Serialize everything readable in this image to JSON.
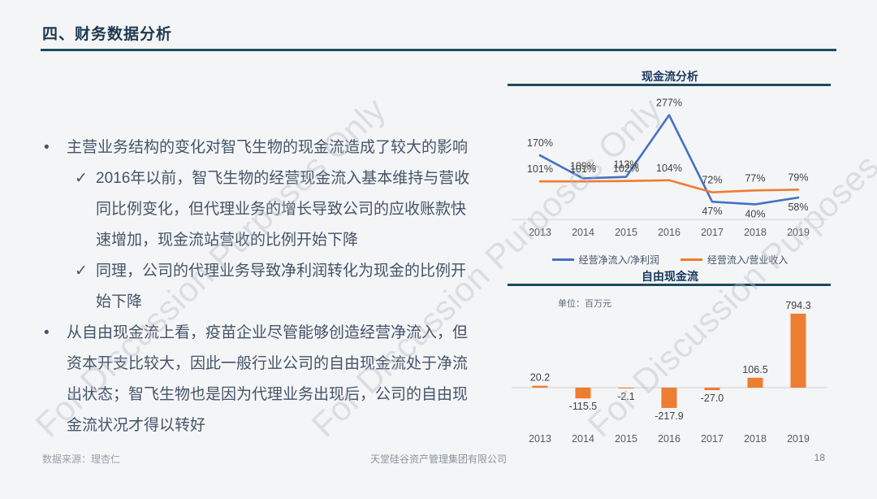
{
  "page": {
    "title": "四、财务数据分析",
    "page_number": "18",
    "footer_source": "数据来源：理杏仁",
    "footer_company": "天堂硅谷资产管理集团有限公司",
    "watermark": "For Discussion Purposes Only"
  },
  "bullets": {
    "bullet_glyph": "•",
    "check_glyph": "✓",
    "item1": "主营业务结构的变化对智飞生物的现金流造成了较大的影响",
    "sub1": "2016年以前，智飞生物的经营现金流入基本维持与营收同比例变化，但代理业务的增长导致公司的应收账款快速增加，现金流站营收的比例开始下降",
    "sub2": "同理，公司的代理业务导致净利润转化为现金的比例开始下降",
    "item2": "从自由现金流上看，疫苗企业尽管能够创造经营净流入，但资本开支比较大，因此一般行业公司的自由现金流处于净流出状态；智飞生物也是因为代理业务出现后，公司的自由现金流状况才得以转好"
  },
  "colors": {
    "accent_navy": "#17375e",
    "rule": "#1c4b61",
    "body_text": "#44546a",
    "axis_baseline": "#d2d2d2",
    "watermark": "#b9bec8"
  },
  "chart_data": [
    {
      "type": "line",
      "title": "现金流分析",
      "categories": [
        "2013",
        "2014",
        "2015",
        "2016",
        "2017",
        "2018",
        "2019"
      ],
      "series": [
        {
          "name": "经营净流入/净利润",
          "color": "#4472c4",
          "values": [
            170,
            109,
            113,
            277,
            47,
            40,
            58
          ],
          "labels": [
            "170%",
            "109%",
            "113%",
            "277%",
            "47%",
            "40%",
            "58%"
          ],
          "label_side": [
            "above",
            "above",
            "above",
            "above",
            "below",
            "below",
            "below"
          ]
        },
        {
          "name": "经营流入/营业收入",
          "color": "#ed7d31",
          "values": [
            101,
            101,
            102,
            104,
            72,
            77,
            79
          ],
          "labels": [
            "101%",
            "101%",
            "102%",
            "104%",
            "72%",
            "77%",
            "79%"
          ],
          "label_side": [
            "above",
            "above",
            "above",
            "above",
            "above",
            "above",
            "above"
          ]
        }
      ],
      "ylim": [
        0,
        320
      ],
      "grid": false,
      "legend_position": "bottom"
    },
    {
      "type": "bar",
      "title": "自由现金流",
      "unit_note": "单位：百万元",
      "categories": [
        "2013",
        "2014",
        "2015",
        "2016",
        "2017",
        "2018",
        "2019"
      ],
      "values": [
        20.2,
        -115.5,
        -2.1,
        -217.9,
        -27.0,
        106.5,
        794.3
      ],
      "labels": [
        "20.2",
        "-115.5",
        "-2.1",
        "-217.9",
        "-27.0",
        "106.5",
        "794.3"
      ],
      "bar_color": "#ed7d31",
      "ylim": [
        -260,
        850
      ],
      "grid": false
    }
  ]
}
